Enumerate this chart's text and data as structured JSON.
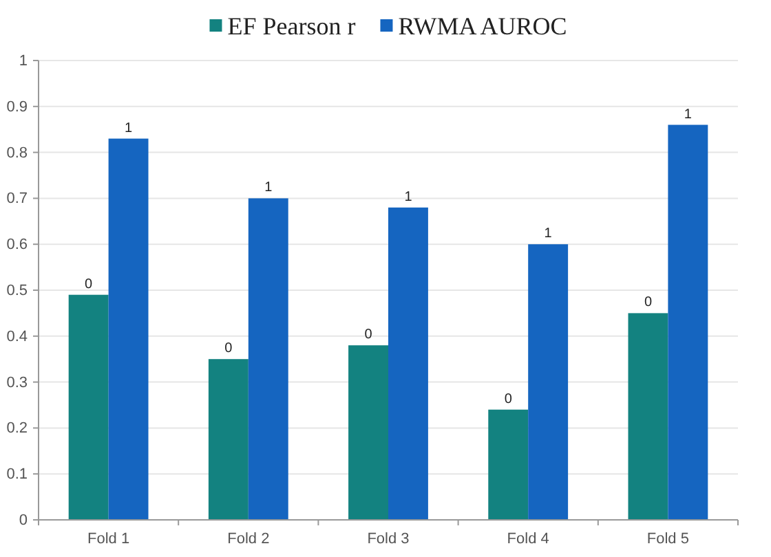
{
  "chart_data": {
    "type": "bar",
    "categories": [
      "Fold 1",
      "Fold 2",
      "Fold 3",
      "Fold 4",
      "Fold 5"
    ],
    "series": [
      {
        "name": "EF Pearson r",
        "color": "#138280",
        "values": [
          0.49,
          0.35,
          0.38,
          0.24,
          0.45
        ],
        "value_labels": [
          "0",
          "0",
          "0",
          "0",
          "0"
        ]
      },
      {
        "name": "RWMA AUROC",
        "color": "#1565c0",
        "values": [
          0.83,
          0.7,
          0.68,
          0.6,
          0.86
        ],
        "value_labels": [
          "1",
          "1",
          "1",
          "1",
          "1"
        ]
      }
    ],
    "ylim": [
      0,
      1
    ],
    "yticks": [
      0,
      0.1,
      0.2,
      0.3,
      0.4,
      0.5,
      0.6,
      0.7,
      0.8,
      0.9,
      1
    ],
    "grid": "y",
    "legend": "top"
  }
}
